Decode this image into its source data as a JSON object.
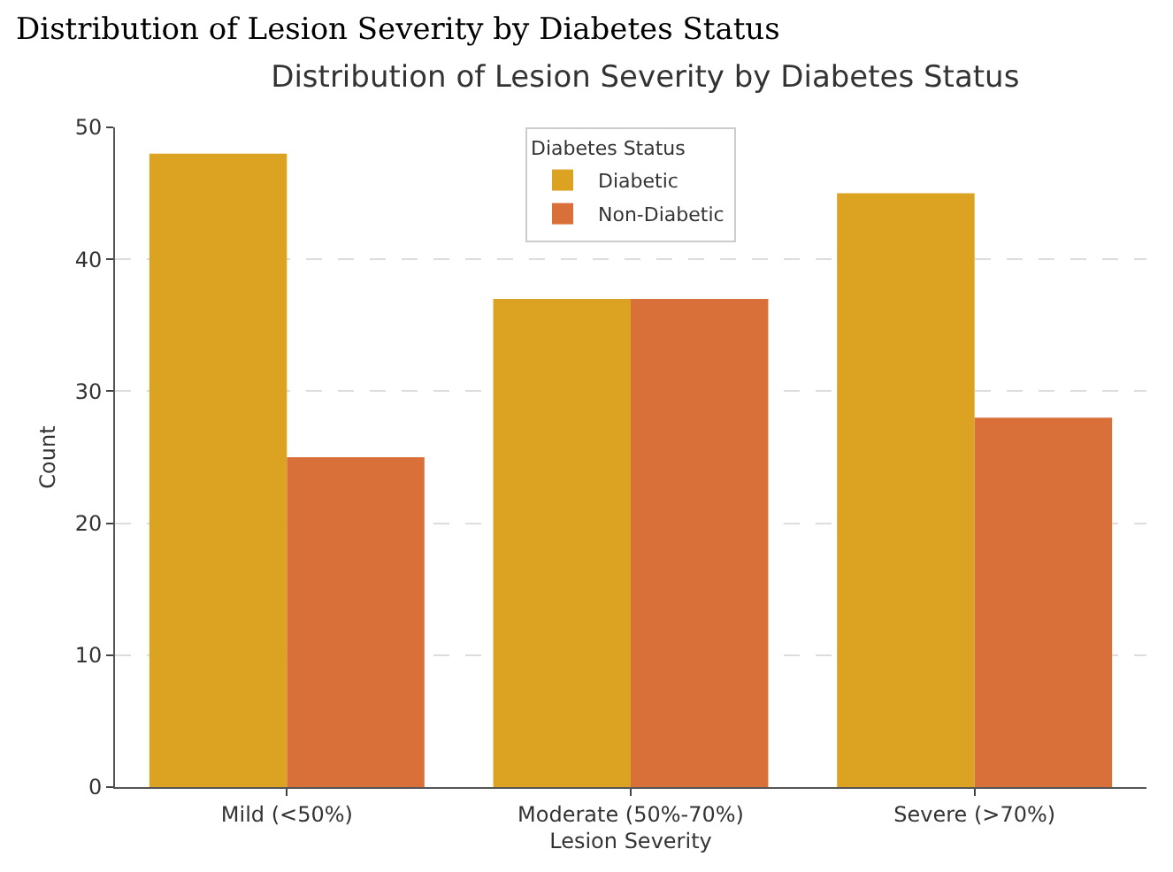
{
  "chart_data": {
    "type": "bar",
    "title": "Distribution of Lesion Severity by Diabetes Status",
    "annotations": [
      "Distribution of Lesion Severity by Diabetes Status"
    ],
    "xlabel": "Lesion Severity",
    "ylabel": "Count",
    "legend_title": "Diabetes Status",
    "categories": [
      "Mild (<50%)",
      "Moderate (50%-70%)",
      "Severe (>70%)"
    ],
    "series": [
      {
        "name": "Diabetic",
        "color": "#dca222",
        "values": [
          48,
          37,
          45
        ]
      },
      {
        "name": "Non-Diabetic",
        "color": "#d9703a",
        "values": [
          25,
          37,
          28
        ]
      }
    ],
    "ylim": [
      0,
      50
    ],
    "yticks": [
      0,
      10,
      20,
      30,
      40,
      50
    ],
    "grid": "y",
    "legend": "top"
  }
}
